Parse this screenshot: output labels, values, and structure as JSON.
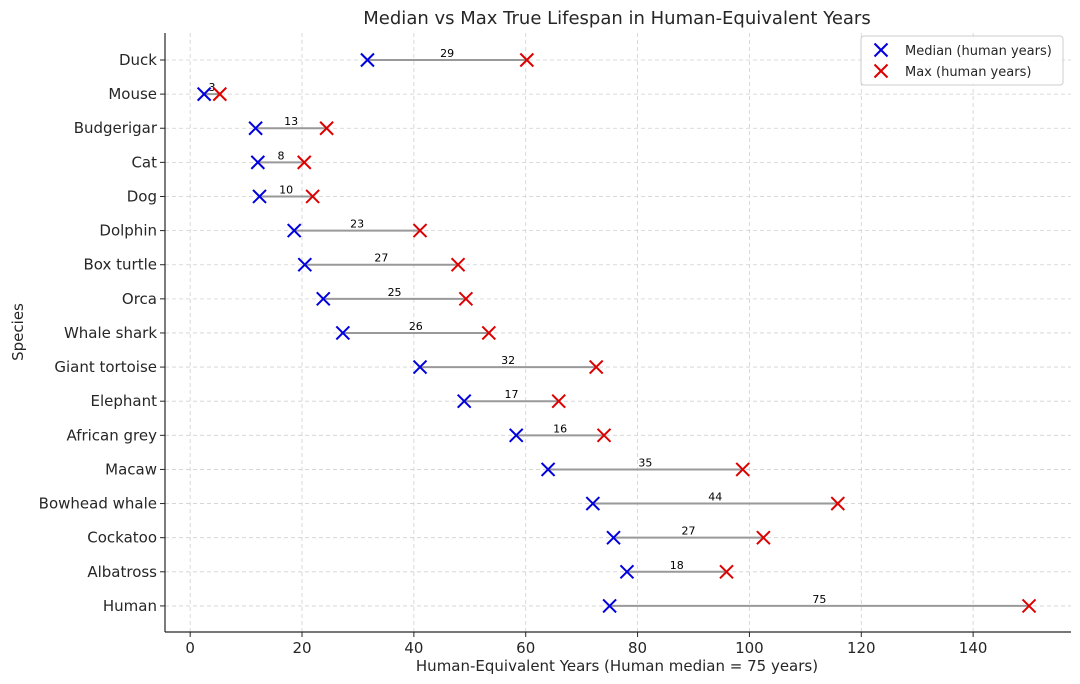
{
  "chart_data": {
    "type": "scatter",
    "title": "Median vs Max True Lifespan in Human-Equivalent Years",
    "xlabel": "Human-Equivalent Years (Human median = 75 years)",
    "ylabel": "Species",
    "xlim": [
      -4.5,
      157.5
    ],
    "xticks": [
      0,
      20,
      40,
      60,
      80,
      100,
      120,
      140
    ],
    "grid": true,
    "legend_position": "top-right",
    "categories": [
      "Duck",
      "Mouse",
      "Budgerigar",
      "Cat",
      "Dog",
      "Dolphin",
      "Box turtle",
      "Orca",
      "Whale shark",
      "Giant tortoise",
      "Elephant",
      "African grey",
      "Macaw",
      "Bowhead whale",
      "Cockatoo",
      "Albatross",
      "Human"
    ],
    "series": [
      {
        "name": "Median (human years)",
        "color": "#0000dd",
        "marker": "x",
        "values": [
          31.7,
          2.5,
          11.7,
          12.1,
          12.4,
          18.6,
          20.5,
          23.8,
          27.3,
          41.1,
          49.0,
          58.3,
          64.0,
          72.0,
          75.7,
          78.1,
          75.0
        ]
      },
      {
        "name": "Max (human years)",
        "color": "#dd0000",
        "marker": "x",
        "values": [
          60.2,
          5.3,
          24.4,
          20.4,
          21.9,
          41.1,
          47.9,
          49.3,
          53.4,
          72.6,
          65.9,
          74.0,
          98.8,
          115.8,
          102.5,
          95.9,
          150.0
        ]
      }
    ],
    "differences": [
      "29",
      "3",
      "13",
      "8",
      "10",
      "23",
      "27",
      "25",
      "26",
      "32",
      "17",
      "16",
      "35",
      "44",
      "27",
      "18",
      "75"
    ],
    "connector_color": "#999999"
  }
}
